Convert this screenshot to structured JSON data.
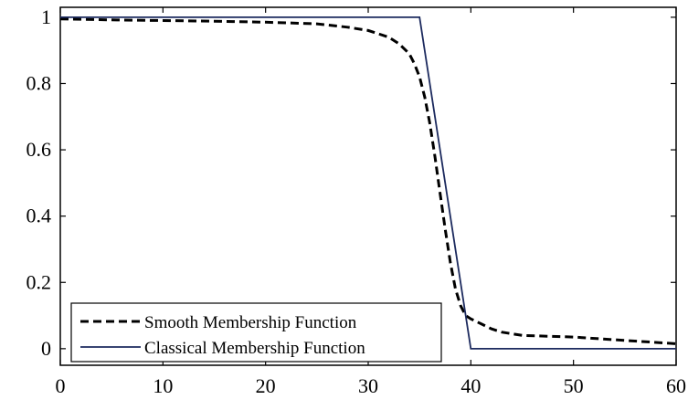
{
  "chart_data": {
    "type": "line",
    "title": "",
    "xlabel": "",
    "ylabel": "",
    "xlim": [
      0,
      60
    ],
    "ylim": [
      -0.05,
      1.03
    ],
    "xticks": [
      "0",
      "10",
      "20",
      "30",
      "40",
      "50",
      "60"
    ],
    "yticks": [
      "0",
      "0.2",
      "0.4",
      "0.6",
      "0.8",
      "1"
    ],
    "grid": false,
    "legend_position": "bottom-left",
    "series": [
      {
        "name": "Smooth Membership Function",
        "style": "dashed",
        "color": "#000000",
        "x": [
          0,
          5,
          10,
          15,
          20,
          25,
          28,
          30,
          32,
          33,
          34,
          34.5,
          35,
          35.5,
          36,
          36.5,
          37,
          37.5,
          38,
          38.5,
          39,
          39.5,
          40,
          41,
          42,
          43,
          44,
          45,
          50,
          55,
          60
        ],
        "y": [
          0.995,
          0.992,
          0.99,
          0.988,
          0.985,
          0.98,
          0.97,
          0.96,
          0.94,
          0.92,
          0.89,
          0.86,
          0.82,
          0.76,
          0.68,
          0.58,
          0.47,
          0.36,
          0.26,
          0.18,
          0.13,
          0.1,
          0.09,
          0.075,
          0.06,
          0.05,
          0.045,
          0.04,
          0.035,
          0.025,
          0.015
        ]
      },
      {
        "name": "Classical Membership Function",
        "style": "solid",
        "color": "#1c2a5e",
        "x": [
          0,
          35,
          40,
          60
        ],
        "y": [
          1,
          1,
          0,
          0
        ]
      }
    ]
  }
}
